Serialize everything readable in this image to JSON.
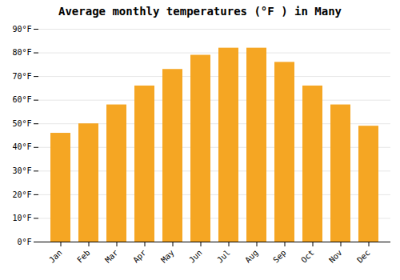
{
  "chart_data": {
    "type": "bar",
    "title": "Average monthly temperatures (°F ) in Many",
    "categories": [
      "Jan",
      "Feb",
      "Mar",
      "Apr",
      "May",
      "Jun",
      "Jul",
      "Aug",
      "Sep",
      "Oct",
      "Nov",
      "Dec"
    ],
    "values": [
      46,
      50,
      58,
      66,
      73,
      79,
      82,
      82,
      76,
      66,
      58,
      49
    ],
    "color": "#F5A623",
    "ylim": [
      0,
      90
    ],
    "yticks": [
      {
        "value": 0,
        "label": "0°F"
      },
      {
        "value": 10,
        "label": "10°F"
      },
      {
        "value": 20,
        "label": "20°F"
      },
      {
        "value": 30,
        "label": "30°F"
      },
      {
        "value": 40,
        "label": "40°F"
      },
      {
        "value": 50,
        "label": "50°F"
      },
      {
        "value": 60,
        "label": "60°F"
      },
      {
        "value": 70,
        "label": "70°F"
      },
      {
        "value": 80,
        "label": "80°F"
      },
      {
        "value": 90,
        "label": "90°F"
      }
    ],
    "grid": true
  }
}
